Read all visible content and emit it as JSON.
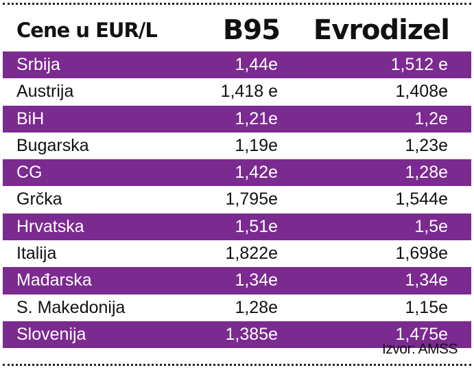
{
  "header": {
    "label": "Cene u EUR/L",
    "col_b95": "B95",
    "col_evrodizel": "Evrodizel"
  },
  "rows": [
    {
      "country": "Srbija",
      "b95": "1,44e",
      "evrodizel": "1,512 e"
    },
    {
      "country": "Austrija",
      "b95": "1,418 e",
      "evrodizel": "1,408e"
    },
    {
      "country": "BiH",
      "b95": "1,21e",
      "evrodizel": "1,2e"
    },
    {
      "country": "Bugarska",
      "b95": "1,19e",
      "evrodizel": "1,23e"
    },
    {
      "country": "CG",
      "b95": "1,42e",
      "evrodizel": "1,28e"
    },
    {
      "country": "Grčka",
      "b95": "1,795e",
      "evrodizel": "1,544e"
    },
    {
      "country": "Hrvatska",
      "b95": "1,51e",
      "evrodizel": "1,5e"
    },
    {
      "country": "Italija",
      "b95": "1,822e",
      "evrodizel": "1,698e"
    },
    {
      "country": "Mađarska",
      "b95": "1,34e",
      "evrodizel": "1,34e"
    },
    {
      "country": "S. Makedonija",
      "b95": "1,28e",
      "evrodizel": "1,15e"
    },
    {
      "country": "Slovenija",
      "b95": "1,385e",
      "evrodizel": "1,475e"
    }
  ],
  "source": "Izvor: AMSS",
  "colors": {
    "stripe": "#7b2a90",
    "text": "#111111"
  }
}
